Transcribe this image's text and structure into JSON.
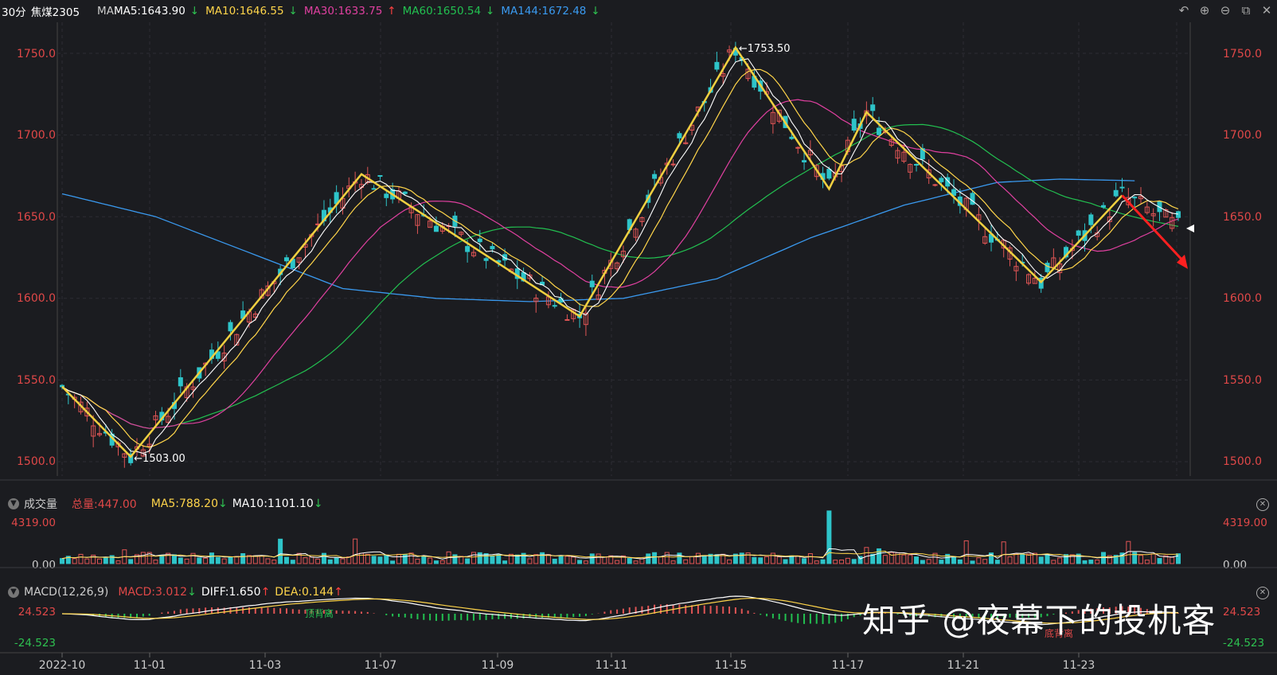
{
  "header": {
    "period": "30分",
    "symbol": "焦煤2305",
    "ma_label": "MA",
    "ma5": "MA5:1643.90",
    "ma10": "MA10:1646.55",
    "ma30": "MA30:1633.75",
    "ma60": "MA60:1650.54",
    "ma144": "MA144:1672.48",
    "arrow_down": "↓",
    "arrow_up": "↑"
  },
  "toolbar": [
    "back-icon",
    "zoom-in-icon",
    "zoom-out-icon",
    "window-icon",
    "close-icon"
  ],
  "volume_header": {
    "title": "成交量",
    "total": "总量:447.00",
    "ma5": "MA5:788.20",
    "ma10": "MA10:1101.10",
    "top_tick": "4319.00",
    "zero_tick": "0.00"
  },
  "macd_header": {
    "title": "MACD(12,26,9)",
    "macd": "MACD:3.012",
    "diff": "DIFF:1.650",
    "dea": "DEA:0.144",
    "top_tick": "24.523",
    "bottom_tick": "-24.523"
  },
  "annotations": {
    "high": "1753.50",
    "low": "1503.00",
    "top_divergence": "顶背离",
    "bottom_divergence": "底背离"
  },
  "watermark": "知乎 @夜幕下的投机客",
  "colors": {
    "up": "#e05555",
    "down": "#2ec4c9",
    "ma5": "#ffffff",
    "ma10": "#ffd54a",
    "ma30": "#e040a0",
    "ma60": "#22c050",
    "ma144": "#3a9af0",
    "zigzag": "#f0d040",
    "arrow": "#ff2020"
  },
  "chart_data": [
    {
      "type": "candlestick",
      "title": "焦煤2305 30分",
      "y_ticks": [
        "1500.0",
        "1550.0",
        "1600.0",
        "1650.0",
        "1700.0",
        "1750.0"
      ],
      "ylim": [
        1495,
        1765
      ],
      "x_ticks": [
        "2022-10",
        "11-01",
        "11-03",
        "11-07",
        "11-09",
        "11-11",
        "11-15",
        "11-17",
        "11-21",
        "11-23"
      ],
      "zigzag_points": [
        {
          "i": 0,
          "v": 1546
        },
        {
          "i": 11,
          "v": 1503
        },
        {
          "i": 48,
          "v": 1676
        },
        {
          "i": 83,
          "v": 1589
        },
        {
          "i": 108,
          "v": 1753.5
        },
        {
          "i": 123,
          "v": 1667
        },
        {
          "i": 129,
          "v": 1714
        },
        {
          "i": 157,
          "v": 1610
        },
        {
          "i": 170,
          "v": 1663
        }
      ],
      "trend_arrow": {
        "from_i": 170,
        "from_v": 1663,
        "to_i": 177,
        "to_v": 1618
      },
      "ma144_anchor": [
        {
          "i": 0,
          "v": 1664
        },
        {
          "i": 15,
          "v": 1650
        },
        {
          "i": 30,
          "v": 1628
        },
        {
          "i": 45,
          "v": 1606
        },
        {
          "i": 60,
          "v": 1600
        },
        {
          "i": 75,
          "v": 1598
        },
        {
          "i": 90,
          "v": 1600
        },
        {
          "i": 105,
          "v": 1612
        },
        {
          "i": 120,
          "v": 1637
        },
        {
          "i": 135,
          "v": 1657
        },
        {
          "i": 150,
          "v": 1671
        },
        {
          "i": 160,
          "v": 1673
        },
        {
          "i": 172,
          "v": 1672
        }
      ]
    },
    {
      "type": "bar",
      "title": "成交量",
      "ylim": [
        0,
        4319
      ],
      "values_note": "per-bar volumes"
    },
    {
      "type": "bar",
      "title": "MACD(12,26,9)",
      "ylim": [
        -24.523,
        24.523
      ]
    }
  ]
}
